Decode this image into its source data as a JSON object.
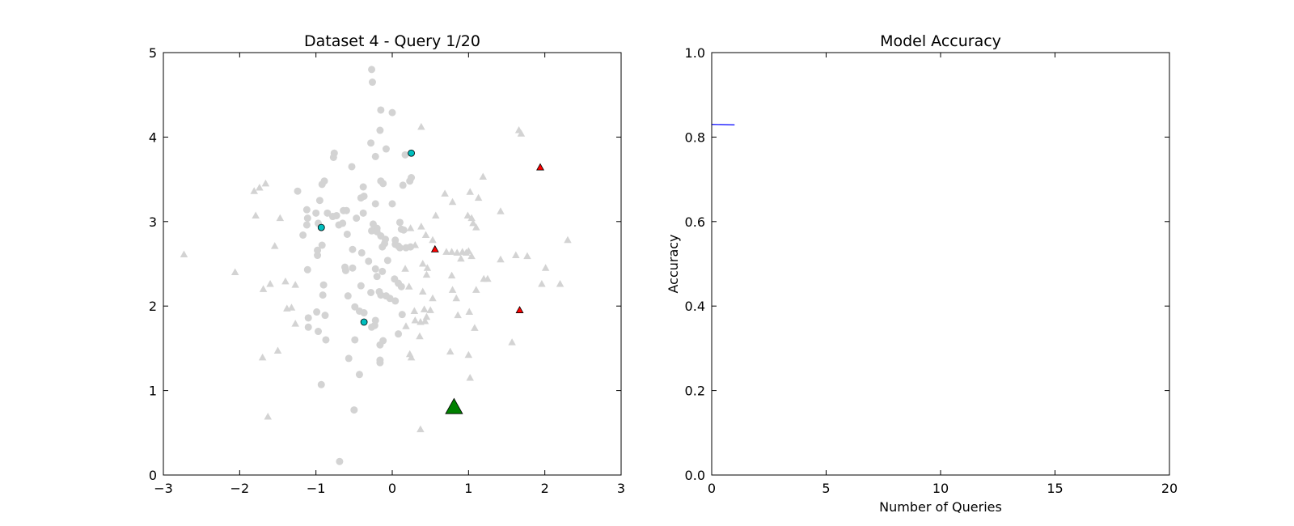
{
  "chart_data": [
    {
      "type": "scatter",
      "title": "Dataset 4 - Query 1/20",
      "xlim": [
        -3,
        3
      ],
      "ylim": [
        0,
        5
      ],
      "xticks": [
        -3,
        -2,
        -1,
        0,
        1,
        2,
        3
      ],
      "yticks": [
        0,
        1,
        2,
        3,
        4,
        5
      ],
      "xtick_labels": [
        "−3",
        "−2",
        "−1",
        "0",
        "1",
        "2",
        "3"
      ],
      "ytick_labels": [
        "0",
        "1",
        "2",
        "3",
        "4",
        "5"
      ],
      "grid": false,
      "series": [
        {
          "marker": "circle",
          "color": "#d3d3d3",
          "points": [
            [
              -0.27,
              4.8
            ],
            [
              -0.26,
              4.65
            ],
            [
              -0.15,
              4.32
            ],
            [
              0.0,
              4.29
            ],
            [
              -0.16,
              4.08
            ],
            [
              -0.28,
              3.93
            ],
            [
              -0.08,
              3.86
            ],
            [
              -0.76,
              3.81
            ],
            [
              -0.77,
              3.76
            ],
            [
              -0.22,
              3.77
            ],
            [
              0.17,
              3.79
            ],
            [
              -0.53,
              3.65
            ],
            [
              0.25,
              3.52
            ],
            [
              0.23,
              3.48
            ],
            [
              -0.89,
              3.48
            ],
            [
              -0.92,
              3.44
            ],
            [
              -0.15,
              3.48
            ],
            [
              -0.12,
              3.45
            ],
            [
              0.14,
              3.43
            ],
            [
              -0.38,
              3.41
            ],
            [
              -0.37,
              3.3
            ],
            [
              -0.41,
              3.28
            ],
            [
              -0.95,
              3.25
            ],
            [
              -0.22,
              3.21
            ],
            [
              0.0,
              3.21
            ],
            [
              -1.24,
              3.36
            ],
            [
              -1.12,
              3.14
            ],
            [
              -1.0,
              3.1
            ],
            [
              -0.85,
              3.1
            ],
            [
              -0.78,
              3.06
            ],
            [
              -0.73,
              3.07
            ],
            [
              -0.64,
              3.13
            ],
            [
              -0.6,
              3.13
            ],
            [
              -0.38,
              3.1
            ],
            [
              -0.47,
              3.04
            ],
            [
              -1.11,
              3.04
            ],
            [
              -1.12,
              2.96
            ],
            [
              -0.97,
              2.98
            ],
            [
              -0.93,
              2.93
            ],
            [
              -0.7,
              2.96
            ],
            [
              -0.65,
              2.98
            ],
            [
              -0.25,
              2.97
            ],
            [
              -0.2,
              2.92
            ],
            [
              -0.27,
              2.89
            ],
            [
              -0.15,
              2.83
            ],
            [
              -0.2,
              2.88
            ],
            [
              -0.09,
              2.79
            ],
            [
              0.04,
              2.78
            ],
            [
              0.1,
              2.99
            ],
            [
              0.12,
              2.91
            ],
            [
              0.15,
              2.9
            ],
            [
              -1.17,
              2.84
            ],
            [
              -0.59,
              2.85
            ],
            [
              -0.1,
              2.74
            ],
            [
              0.04,
              2.73
            ],
            [
              0.08,
              2.71
            ],
            [
              0.1,
              2.69
            ],
            [
              0.18,
              2.69
            ],
            [
              0.24,
              2.7
            ],
            [
              -0.92,
              2.72
            ],
            [
              -0.98,
              2.66
            ],
            [
              -0.98,
              2.6
            ],
            [
              -0.52,
              2.67
            ],
            [
              -0.4,
              2.63
            ],
            [
              -0.13,
              2.7
            ],
            [
              -0.31,
              2.53
            ],
            [
              -0.06,
              2.54
            ],
            [
              -0.62,
              2.46
            ],
            [
              -0.61,
              2.42
            ],
            [
              -0.52,
              2.45
            ],
            [
              -0.22,
              2.44
            ],
            [
              -0.13,
              2.41
            ],
            [
              -1.11,
              2.43
            ],
            [
              -0.2,
              2.35
            ],
            [
              0.03,
              2.32
            ],
            [
              0.08,
              2.27
            ],
            [
              0.12,
              2.23
            ],
            [
              -0.9,
              2.25
            ],
            [
              -0.41,
              2.24
            ],
            [
              -0.28,
              2.16
            ],
            [
              -0.17,
              2.17
            ],
            [
              -0.15,
              2.13
            ],
            [
              -0.08,
              2.12
            ],
            [
              -0.03,
              2.09
            ],
            [
              0.04,
              2.06
            ],
            [
              -0.91,
              2.13
            ],
            [
              -0.58,
              2.12
            ],
            [
              -1.1,
              1.86
            ],
            [
              -1.1,
              1.75
            ],
            [
              -0.99,
              1.93
            ],
            [
              -0.97,
              1.7
            ],
            [
              -0.88,
              1.89
            ],
            [
              -0.49,
              1.99
            ],
            [
              -0.43,
              1.94
            ],
            [
              -0.37,
              1.92
            ],
            [
              -0.22,
              1.83
            ],
            [
              -0.23,
              1.77
            ],
            [
              -0.27,
              1.75
            ],
            [
              0.13,
              1.9
            ],
            [
              -0.87,
              1.6
            ],
            [
              -0.49,
              1.6
            ],
            [
              -0.16,
              1.54
            ],
            [
              -0.12,
              1.59
            ],
            [
              0.08,
              1.67
            ],
            [
              -0.57,
              1.38
            ],
            [
              -0.16,
              1.36
            ],
            [
              -0.16,
              1.33
            ],
            [
              -0.93,
              1.07
            ],
            [
              -0.43,
              1.19
            ],
            [
              -0.5,
              0.77
            ],
            [
              -0.69,
              0.16
            ]
          ]
        },
        {
          "marker": "triangle",
          "color": "#d3d3d3",
          "points": [
            [
              0.38,
              4.12
            ],
            [
              1.66,
              4.08
            ],
            [
              1.69,
              4.04
            ],
            [
              -1.66,
              3.45
            ],
            [
              -1.74,
              3.4
            ],
            [
              -1.81,
              3.36
            ],
            [
              1.19,
              3.53
            ],
            [
              0.69,
              3.33
            ],
            [
              1.02,
              3.35
            ],
            [
              1.13,
              3.28
            ],
            [
              0.79,
              3.23
            ],
            [
              -1.79,
              3.07
            ],
            [
              -1.47,
              3.04
            ],
            [
              0.57,
              3.07
            ],
            [
              0.99,
              3.07
            ],
            [
              1.04,
              3.04
            ],
            [
              1.06,
              2.98
            ],
            [
              1.1,
              2.93
            ],
            [
              1.42,
              3.12
            ],
            [
              0.38,
              2.94
            ],
            [
              0.24,
              2.92
            ],
            [
              0.44,
              2.84
            ],
            [
              0.53,
              2.78
            ],
            [
              -1.54,
              2.71
            ],
            [
              0.3,
              2.72
            ],
            [
              0.71,
              2.64
            ],
            [
              0.78,
              2.64
            ],
            [
              0.85,
              2.63
            ],
            [
              0.92,
              2.64
            ],
            [
              0.97,
              2.63
            ],
            [
              1.0,
              2.65
            ],
            [
              1.04,
              2.59
            ],
            [
              0.9,
              2.56
            ],
            [
              1.42,
              2.55
            ],
            [
              1.62,
              2.6
            ],
            [
              1.77,
              2.59
            ],
            [
              2.3,
              2.78
            ],
            [
              -2.73,
              2.61
            ],
            [
              0.4,
              2.5
            ],
            [
              0.46,
              2.45
            ],
            [
              0.17,
              2.44
            ],
            [
              0.45,
              2.37
            ],
            [
              0.78,
              2.36
            ],
            [
              2.01,
              2.45
            ],
            [
              -2.06,
              2.4
            ],
            [
              -1.4,
              2.29
            ],
            [
              -1.6,
              2.26
            ],
            [
              -1.27,
              2.25
            ],
            [
              1.96,
              2.26
            ],
            [
              2.2,
              2.26
            ],
            [
              1.2,
              2.32
            ],
            [
              1.25,
              2.32
            ],
            [
              0.22,
              2.23
            ],
            [
              -1.69,
              2.2
            ],
            [
              0.4,
              2.17
            ],
            [
              0.79,
              2.19
            ],
            [
              1.1,
              2.19
            ],
            [
              0.84,
              2.09
            ],
            [
              0.53,
              2.09
            ],
            [
              -1.38,
              1.97
            ],
            [
              -1.32,
              1.98
            ],
            [
              0.42,
              1.96
            ],
            [
              0.5,
              1.95
            ],
            [
              0.29,
              1.94
            ],
            [
              0.45,
              1.87
            ],
            [
              0.43,
              1.82
            ],
            [
              0.37,
              1.81
            ],
            [
              0.3,
              1.83
            ],
            [
              0.86,
              1.89
            ],
            [
              1.01,
              1.93
            ],
            [
              1.08,
              1.74
            ],
            [
              0.18,
              1.76
            ],
            [
              -1.27,
              1.79
            ],
            [
              0.36,
              1.64
            ],
            [
              -1.5,
              1.47
            ],
            [
              0.76,
              1.46
            ],
            [
              1.0,
              1.42
            ],
            [
              0.23,
              1.43
            ],
            [
              0.25,
              1.39
            ],
            [
              -1.7,
              1.39
            ],
            [
              1.57,
              1.57
            ],
            [
              1.02,
              1.15
            ],
            [
              -1.63,
              0.69
            ],
            [
              0.37,
              0.54
            ]
          ]
        },
        {
          "marker": "circle",
          "color": "#00bfbf",
          "points": [
            [
              0.25,
              3.81
            ],
            [
              -0.93,
              2.93
            ],
            [
              -0.37,
              1.81
            ]
          ]
        },
        {
          "marker": "triangle",
          "color": "#ff0000",
          "points": [
            [
              1.94,
              3.64
            ],
            [
              0.56,
              2.67
            ],
            [
              1.67,
              1.95
            ]
          ]
        },
        {
          "marker": "triangle-large",
          "color": "#008000",
          "points": [
            [
              0.81,
              0.8
            ]
          ]
        }
      ]
    },
    {
      "type": "line",
      "title": "Model Accuracy",
      "xlabel": "Number of Queries",
      "ylabel": "Accuracy",
      "xlim": [
        0,
        20
      ],
      "ylim": [
        0.0,
        1.0
      ],
      "xticks": [
        0,
        5,
        10,
        15,
        20
      ],
      "yticks": [
        0.0,
        0.2,
        0.4,
        0.6,
        0.8,
        1.0
      ],
      "xtick_labels": [
        "0",
        "5",
        "10",
        "15",
        "20"
      ],
      "ytick_labels": [
        "0.0",
        "0.2",
        "0.4",
        "0.6",
        "0.8",
        "1.0"
      ],
      "grid": false,
      "series": [
        {
          "color": "#0000ff",
          "x": [
            0,
            1
          ],
          "y": [
            0.83,
            0.829
          ]
        }
      ]
    }
  ]
}
